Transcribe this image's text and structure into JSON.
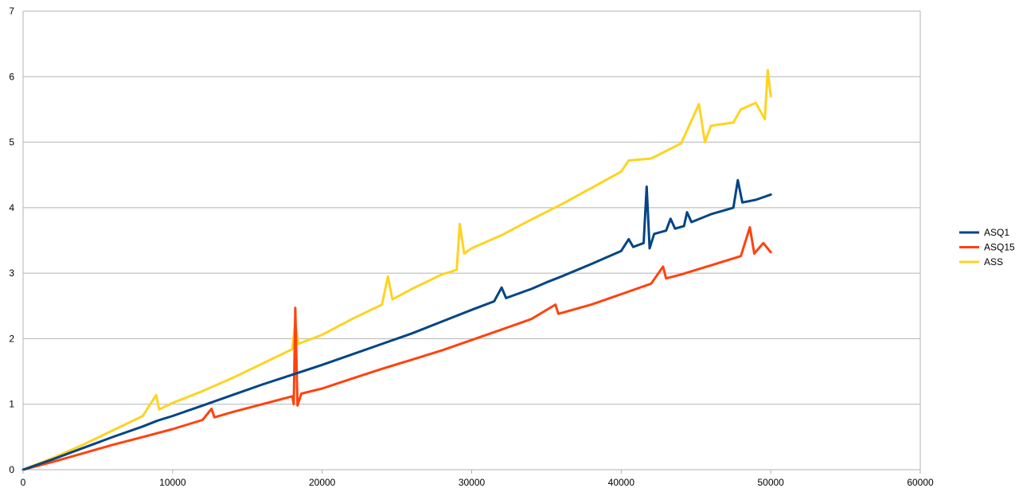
{
  "chart_data": {
    "type": "line",
    "title": "",
    "xlabel": "",
    "ylabel": "",
    "xlim": [
      0,
      60000
    ],
    "ylim": [
      0,
      7
    ],
    "x_ticks": [
      0,
      10000,
      20000,
      30000,
      40000,
      50000,
      60000
    ],
    "y_ticks": [
      0,
      1,
      2,
      3,
      4,
      5,
      6,
      7
    ],
    "x_tick_labels": [
      "0",
      "10000",
      "20000",
      "30000",
      "40000",
      "50000",
      "60000"
    ],
    "y_tick_labels": [
      "0",
      "1",
      "2",
      "3",
      "4",
      "5",
      "6",
      "7"
    ],
    "grid": "horizontal",
    "legend_position": "right",
    "series": [
      {
        "name": "ASQ1",
        "color": "#004586",
        "points": [
          [
            0,
            0
          ],
          [
            2000,
            0.16
          ],
          [
            4000,
            0.33
          ],
          [
            6000,
            0.5
          ],
          [
            8000,
            0.66
          ],
          [
            9000,
            0.75
          ],
          [
            10000,
            0.82
          ],
          [
            12000,
            0.98
          ],
          [
            14000,
            1.14
          ],
          [
            16000,
            1.3
          ],
          [
            18000,
            1.45
          ],
          [
            20000,
            1.6
          ],
          [
            22000,
            1.76
          ],
          [
            24000,
            1.92
          ],
          [
            26000,
            2.08
          ],
          [
            28000,
            2.26
          ],
          [
            30000,
            2.44
          ],
          [
            31500,
            2.57
          ],
          [
            32000,
            2.78
          ],
          [
            32300,
            2.62
          ],
          [
            34000,
            2.76
          ],
          [
            35000,
            2.86
          ],
          [
            36000,
            2.95
          ],
          [
            38000,
            3.14
          ],
          [
            40000,
            3.34
          ],
          [
            40500,
            3.52
          ],
          [
            40800,
            3.4
          ],
          [
            41500,
            3.46
          ],
          [
            41700,
            4.32
          ],
          [
            41900,
            3.38
          ],
          [
            42200,
            3.6
          ],
          [
            43000,
            3.65
          ],
          [
            43300,
            3.83
          ],
          [
            43600,
            3.68
          ],
          [
            44200,
            3.72
          ],
          [
            44400,
            3.93
          ],
          [
            44700,
            3.78
          ],
          [
            46000,
            3.9
          ],
          [
            47500,
            4.0
          ],
          [
            47800,
            4.42
          ],
          [
            48100,
            4.08
          ],
          [
            49000,
            4.12
          ],
          [
            50000,
            4.2
          ]
        ]
      },
      {
        "name": "ASQ15",
        "color": "#ff420e",
        "points": [
          [
            0,
            0
          ],
          [
            2000,
            0.12
          ],
          [
            4000,
            0.25
          ],
          [
            6000,
            0.38
          ],
          [
            8000,
            0.5
          ],
          [
            10000,
            0.62
          ],
          [
            12000,
            0.76
          ],
          [
            12600,
            0.93
          ],
          [
            12800,
            0.8
          ],
          [
            14000,
            0.88
          ],
          [
            16000,
            1.0
          ],
          [
            18000,
            1.12
          ],
          [
            18100,
            1.0
          ],
          [
            18200,
            2.47
          ],
          [
            18350,
            0.98
          ],
          [
            18600,
            1.16
          ],
          [
            20000,
            1.24
          ],
          [
            22000,
            1.39
          ],
          [
            24000,
            1.54
          ],
          [
            26000,
            1.68
          ],
          [
            28000,
            1.82
          ],
          [
            30000,
            1.98
          ],
          [
            32000,
            2.14
          ],
          [
            34000,
            2.3
          ],
          [
            35600,
            2.52
          ],
          [
            35800,
            2.38
          ],
          [
            38000,
            2.52
          ],
          [
            40000,
            2.68
          ],
          [
            42000,
            2.84
          ],
          [
            42800,
            3.1
          ],
          [
            43000,
            2.92
          ],
          [
            44000,
            2.98
          ],
          [
            46000,
            3.12
          ],
          [
            48000,
            3.26
          ],
          [
            48600,
            3.7
          ],
          [
            48900,
            3.3
          ],
          [
            49500,
            3.46
          ],
          [
            50000,
            3.32
          ]
        ]
      },
      {
        "name": "ASS",
        "color": "#ffd320",
        "points": [
          [
            0,
            0
          ],
          [
            2000,
            0.18
          ],
          [
            4000,
            0.38
          ],
          [
            6000,
            0.6
          ],
          [
            8000,
            0.82
          ],
          [
            8900,
            1.14
          ],
          [
            9100,
            0.92
          ],
          [
            10000,
            1.02
          ],
          [
            12000,
            1.2
          ],
          [
            14000,
            1.4
          ],
          [
            16000,
            1.62
          ],
          [
            18000,
            1.84
          ],
          [
            18200,
            2.25
          ],
          [
            18400,
            1.92
          ],
          [
            20000,
            2.06
          ],
          [
            22000,
            2.3
          ],
          [
            24000,
            2.52
          ],
          [
            24400,
            2.95
          ],
          [
            24700,
            2.6
          ],
          [
            26000,
            2.76
          ],
          [
            28000,
            2.98
          ],
          [
            29000,
            3.05
          ],
          [
            29200,
            3.75
          ],
          [
            29500,
            3.3
          ],
          [
            30000,
            3.38
          ],
          [
            32000,
            3.58
          ],
          [
            34000,
            3.82
          ],
          [
            36000,
            4.05
          ],
          [
            38000,
            4.3
          ],
          [
            40000,
            4.55
          ],
          [
            40500,
            4.72
          ],
          [
            42000,
            4.75
          ],
          [
            44000,
            4.98
          ],
          [
            45200,
            5.58
          ],
          [
            45600,
            5.0
          ],
          [
            46000,
            5.25
          ],
          [
            47500,
            5.3
          ],
          [
            48000,
            5.5
          ],
          [
            49000,
            5.6
          ],
          [
            49600,
            5.35
          ],
          [
            49800,
            6.1
          ],
          [
            50000,
            5.7
          ]
        ]
      }
    ]
  }
}
